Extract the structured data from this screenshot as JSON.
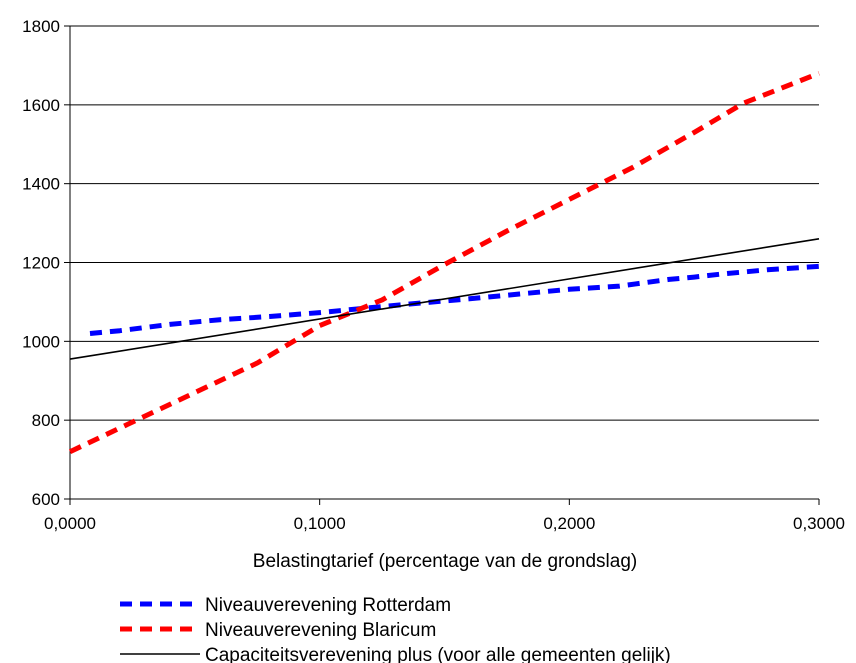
{
  "chart_data": {
    "type": "line",
    "xlabel": "Belastingtarief (percentage van de grondslag)",
    "ylabel": "",
    "xlim": [
      0,
      0.3
    ],
    "ylim": [
      600,
      1800
    ],
    "x_ticks": [
      "0,0000",
      "0,1000",
      "0,2000",
      "0,3000"
    ],
    "x_tick_values": [
      0,
      0.1,
      0.2,
      0.3
    ],
    "y_ticks": [
      "600",
      "800",
      "1000",
      "1200",
      "1400",
      "1600",
      "1800"
    ],
    "y_tick_values": [
      600,
      800,
      1000,
      1200,
      1400,
      1600,
      1800
    ],
    "grid": "horizontal",
    "legend_position": "bottom",
    "series": [
      {
        "name": "Niveauverevening Rotterdam",
        "color": "#0000ff",
        "style": "dashed",
        "x": [
          0.008,
          0.02,
          0.04,
          0.06,
          0.08,
          0.1,
          0.12,
          0.14,
          0.16,
          0.18,
          0.2,
          0.22,
          0.24,
          0.25,
          0.26,
          0.28,
          0.3
        ],
        "y": [
          1020,
          1027,
          1043,
          1055,
          1063,
          1073,
          1085,
          1097,
          1108,
          1120,
          1132,
          1140,
          1157,
          1163,
          1170,
          1182,
          1190
        ]
      },
      {
        "name": "Niveauverevening Blaricum",
        "color": "#ff0000",
        "style": "dashed",
        "x": [
          0,
          0.025,
          0.05,
          0.075,
          0.1,
          0.125,
          0.15,
          0.175,
          0.2,
          0.225,
          0.25,
          0.27,
          0.3
        ],
        "y": [
          720,
          795,
          870,
          945,
          1040,
          1105,
          1195,
          1280,
          1360,
          1440,
          1530,
          1605,
          1680
        ]
      },
      {
        "name": "Capaciteitsverevening plus (voor alle gemeenten gelijk)",
        "color": "#000000",
        "style": "solid",
        "x": [
          0,
          0.3
        ],
        "y": [
          955,
          1260
        ]
      }
    ]
  }
}
